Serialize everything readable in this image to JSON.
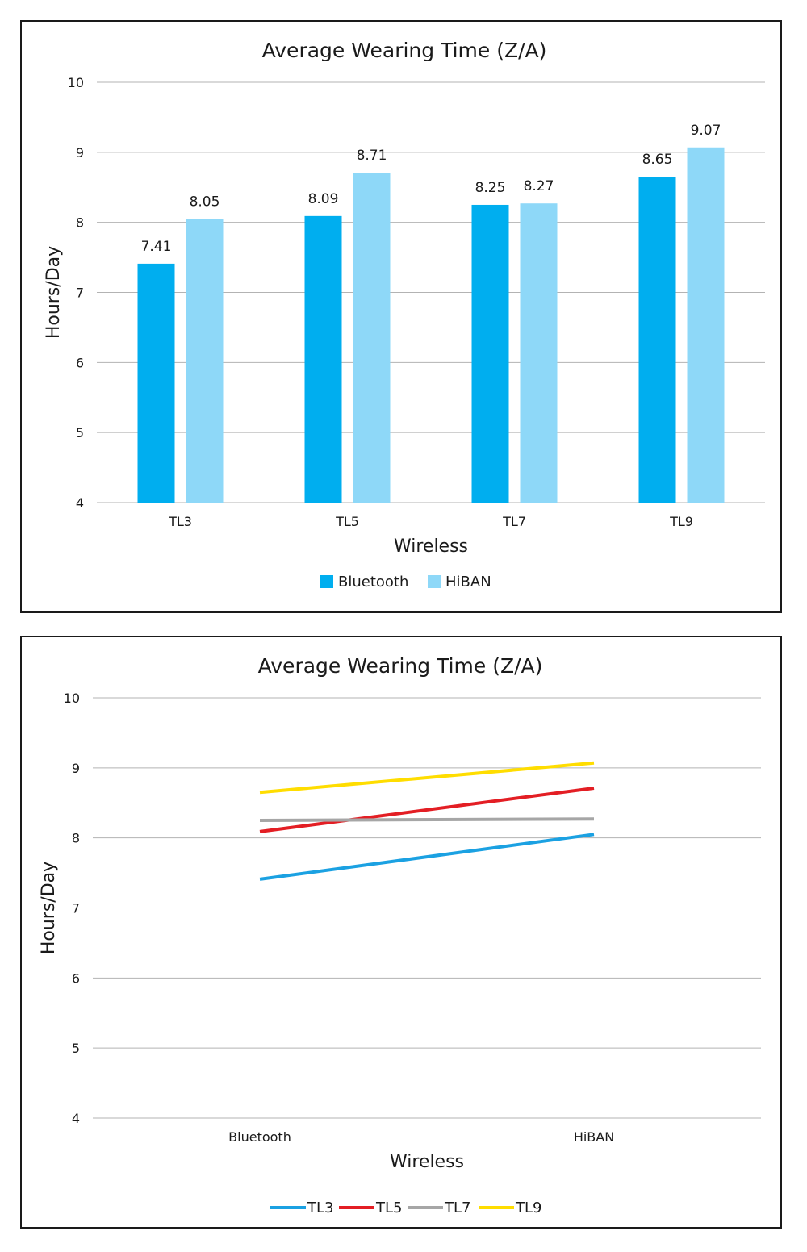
{
  "chart_data": [
    {
      "type": "bar",
      "title": "Average Wearing Time (Z/A)",
      "xlabel": "Wireless",
      "ylabel": "Hours/Day",
      "ylim": [
        4,
        10
      ],
      "yticks": [
        "4",
        "5",
        "6",
        "7",
        "8",
        "9",
        "10"
      ],
      "categories": [
        "TL3",
        "TL5",
        "TL7",
        "TL9"
      ],
      "series": [
        {
          "name": "Bluetooth",
          "color": "#00AEEF",
          "values": [
            7.41,
            8.09,
            8.25,
            8.65
          ]
        },
        {
          "name": "HiBAN",
          "color": "#8ED8F8",
          "values": [
            8.05,
            8.71,
            8.27,
            9.07
          ]
        }
      ],
      "grid": true,
      "legend": "bottom"
    },
    {
      "type": "line",
      "title": "Average Wearing Time (Z/A)",
      "xlabel": "Wireless",
      "ylabel": "Hours/Day",
      "ylim": [
        4,
        10
      ],
      "yticks": [
        "4",
        "5",
        "6",
        "7",
        "8",
        "9",
        "10"
      ],
      "categories": [
        "Bluetooth",
        "HiBAN"
      ],
      "series": [
        {
          "name": "TL3",
          "color": "#1BA1E2",
          "values": [
            7.41,
            8.05
          ]
        },
        {
          "name": "TL5",
          "color": "#E31E24",
          "values": [
            8.09,
            8.71
          ]
        },
        {
          "name": "TL7",
          "color": "#A6A6A6",
          "values": [
            8.25,
            8.27
          ]
        },
        {
          "name": "TL9",
          "color": "#FFDD00",
          "values": [
            8.65,
            9.07
          ]
        }
      ],
      "grid": true,
      "legend": "bottom"
    }
  ]
}
